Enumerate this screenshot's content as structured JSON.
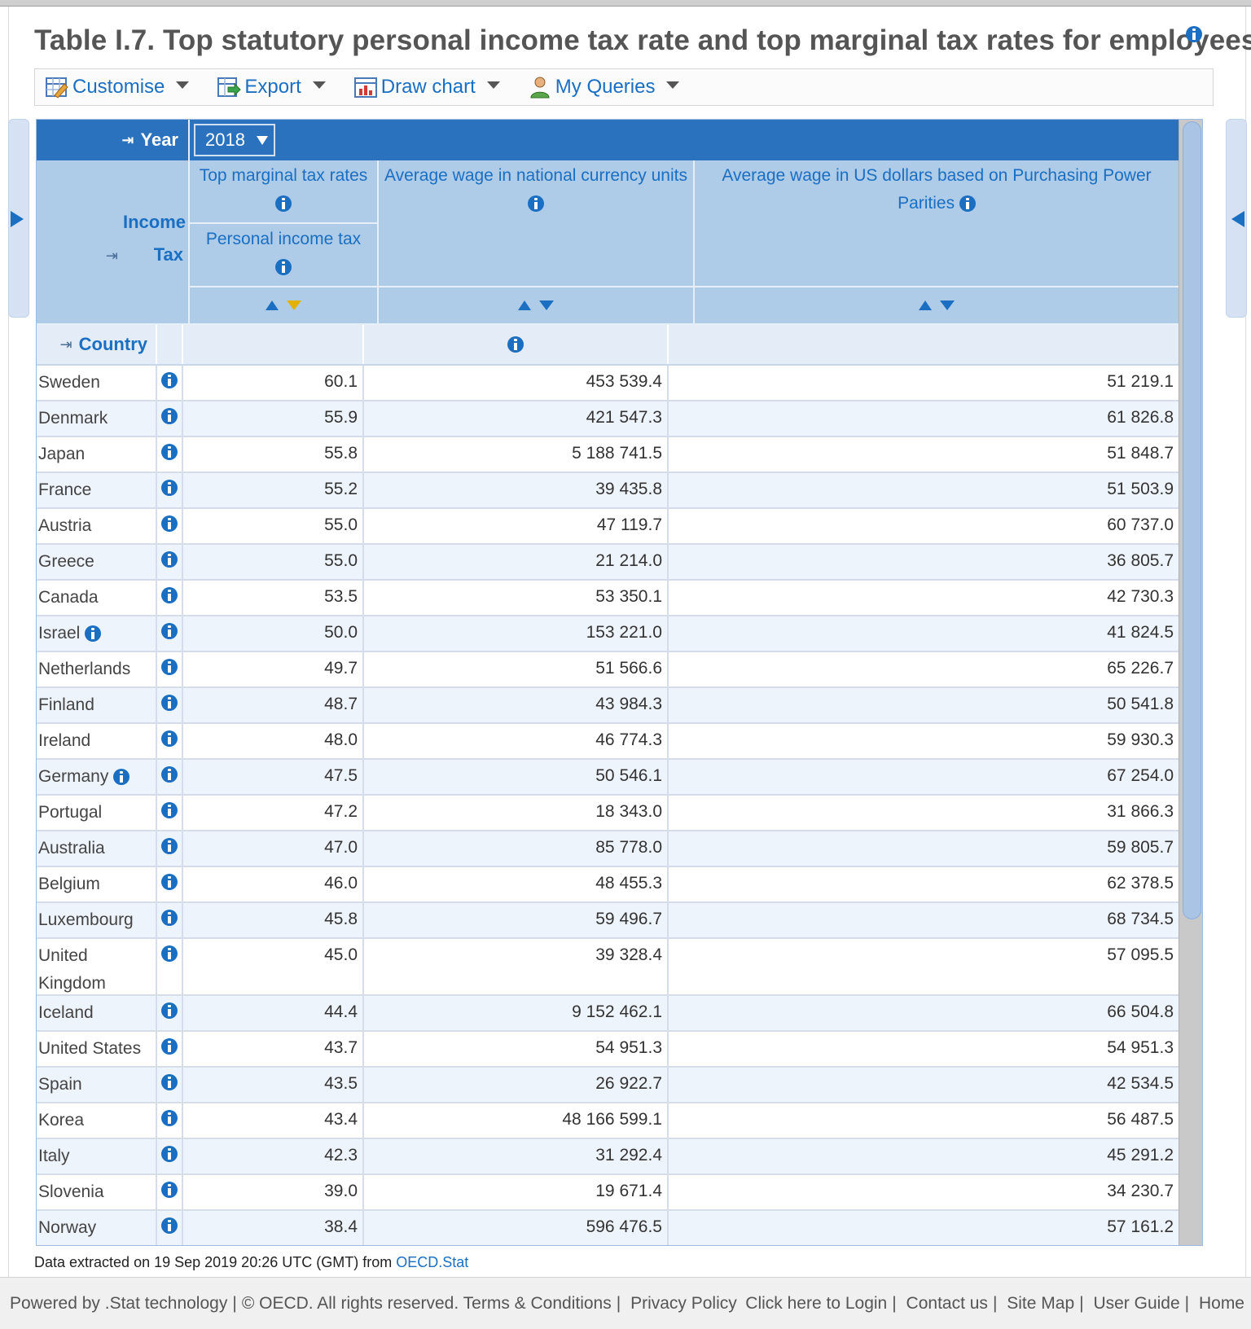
{
  "title": "Table I.7. Top statutory personal income tax rate and top marginal tax rates for employees",
  "toolbar": {
    "customise": "Customise",
    "export": "Export",
    "draw_chart": "Draw chart",
    "my_queries": "My Queries"
  },
  "dimensions": {
    "year_label": "Year",
    "year_value": "2018",
    "income_tax_label": "Income Tax",
    "country_label": "Country"
  },
  "columns": {
    "col1_header": "Top marginal tax rates",
    "col1_subheader": "Personal income tax",
    "col2_header": "Average wage in national currency units",
    "col3_header": "Average wage in US dollars based on Purchasing Power Parities"
  },
  "rows": [
    {
      "country": "Sweden",
      "tax": "60.1",
      "wage_ncu": "453 539.4",
      "wage_ppp": "51 219.1"
    },
    {
      "country": "Denmark",
      "tax": "55.9",
      "wage_ncu": "421 547.3",
      "wage_ppp": "61 826.8"
    },
    {
      "country": "Japan",
      "tax": "55.8",
      "wage_ncu": "5 188 741.5",
      "wage_ppp": "51 848.7"
    },
    {
      "country": "France",
      "tax": "55.2",
      "wage_ncu": "39 435.8",
      "wage_ppp": "51 503.9"
    },
    {
      "country": "Austria",
      "tax": "55.0",
      "wage_ncu": "47 119.7",
      "wage_ppp": "60 737.0"
    },
    {
      "country": "Greece",
      "tax": "55.0",
      "wage_ncu": "21 214.0",
      "wage_ppp": "36 805.7"
    },
    {
      "country": "Canada",
      "tax": "53.5",
      "wage_ncu": "53 350.1",
      "wage_ppp": "42 730.3"
    },
    {
      "country": "Israel",
      "tax": "50.0",
      "wage_ncu": "153 221.0",
      "wage_ppp": "41 824.5",
      "note": true
    },
    {
      "country": "Netherlands",
      "tax": "49.7",
      "wage_ncu": "51 566.6",
      "wage_ppp": "65 226.7"
    },
    {
      "country": "Finland",
      "tax": "48.7",
      "wage_ncu": "43 984.3",
      "wage_ppp": "50 541.8"
    },
    {
      "country": "Ireland",
      "tax": "48.0",
      "wage_ncu": "46 774.3",
      "wage_ppp": "59 930.3"
    },
    {
      "country": "Germany",
      "tax": "47.5",
      "wage_ncu": "50 546.1",
      "wage_ppp": "67 254.0",
      "note": true
    },
    {
      "country": "Portugal",
      "tax": "47.2",
      "wage_ncu": "18 343.0",
      "wage_ppp": "31 866.3"
    },
    {
      "country": "Australia",
      "tax": "47.0",
      "wage_ncu": "85 778.0",
      "wage_ppp": "59 805.7"
    },
    {
      "country": "Belgium",
      "tax": "46.0",
      "wage_ncu": "48 455.3",
      "wage_ppp": "62 378.5"
    },
    {
      "country": "Luxembourg",
      "tax": "45.8",
      "wage_ncu": "59 496.7",
      "wage_ppp": "68 734.5"
    },
    {
      "country": "United Kingdom",
      "tax": "45.0",
      "wage_ncu": "39 328.4",
      "wage_ppp": "57 095.5"
    },
    {
      "country": "Iceland",
      "tax": "44.4",
      "wage_ncu": "9 152 462.1",
      "wage_ppp": "66 504.8"
    },
    {
      "country": "United States",
      "tax": "43.7",
      "wage_ncu": "54 951.3",
      "wage_ppp": "54 951.3"
    },
    {
      "country": "Spain",
      "tax": "43.5",
      "wage_ncu": "26 922.7",
      "wage_ppp": "42 534.5"
    },
    {
      "country": "Korea",
      "tax": "43.4",
      "wage_ncu": "48 166 599.1",
      "wage_ppp": "56 487.5"
    },
    {
      "country": "Italy",
      "tax": "42.3",
      "wage_ncu": "31 292.4",
      "wage_ppp": "45 291.2"
    },
    {
      "country": "Slovenia",
      "tax": "39.0",
      "wage_ncu": "19 671.4",
      "wage_ppp": "34 230.7"
    },
    {
      "country": "Norway",
      "tax": "38.4",
      "wage_ncu": "596 476.5",
      "wage_ppp": "57 161.2"
    }
  ],
  "footer": {
    "extracted": "Data extracted on 19 Sep 2019 20:26 UTC (GMT) from ",
    "source_link": "OECD.Stat"
  },
  "bottom_bar": {
    "powered": "Powered by .Stat technology",
    "copyright": "© OECD. All rights reserved.",
    "terms": "Terms & Conditions",
    "privacy": "Privacy Policy",
    "login": "Click here to Login",
    "contact": "Contact us",
    "sitemap": "Site Map",
    "guide": "User Guide",
    "home": "Home"
  },
  "colors": {
    "accent": "#1a6fc2",
    "header_dark": "#2a72be",
    "header_light": "#aecbe8",
    "row_alt": "#eef4fb"
  }
}
